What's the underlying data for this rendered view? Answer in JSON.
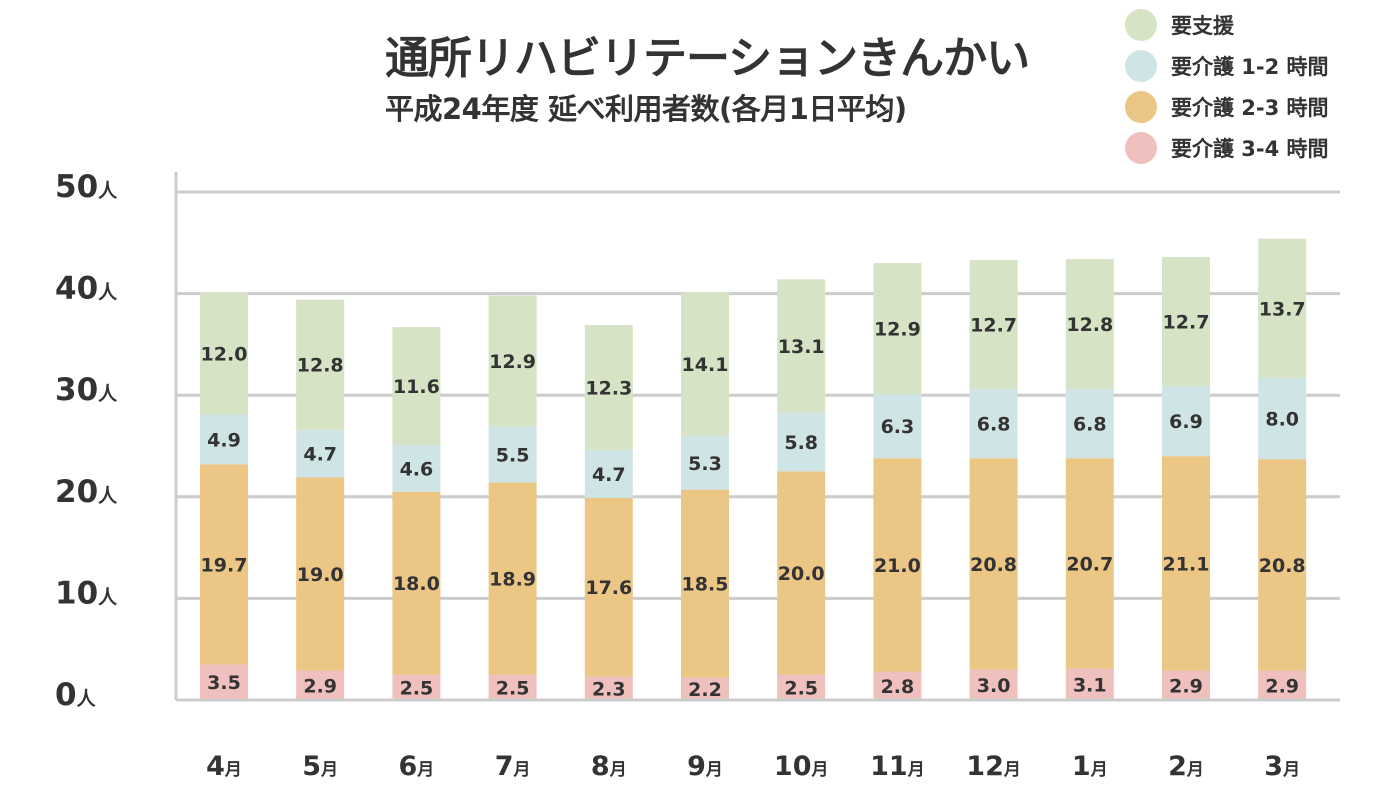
{
  "title": "通所リハビリテーションきんかい",
  "subtitle": "平成24年度 延べ利用者数(各月1日平均)",
  "colors": {
    "shien": "#d6e3c4",
    "kaigo12": "#cfe4e4",
    "kaigo23": "#ebc685",
    "kaigo34": "#efc0bd",
    "grid": "#cccccc",
    "axis": "#cccccc"
  },
  "chart_data": {
    "type": "bar",
    "stacked": true,
    "title": "通所リハビリテーションきんかい",
    "subtitle": "平成24年度 延べ利用者数(各月1日平均)",
    "categories": [
      "4月",
      "5月",
      "6月",
      "7月",
      "8月",
      "9月",
      "10月",
      "11月",
      "12月",
      "1月",
      "2月",
      "3月"
    ],
    "y_ticks": [
      "0人",
      "10人",
      "20人",
      "30人",
      "40人",
      "50人"
    ],
    "ylim": [
      0,
      50
    ],
    "grid": true,
    "legend_position": "top-right",
    "series": [
      {
        "name": "要介護 3-4 時間",
        "color_key": "kaigo34",
        "values": [
          3.5,
          2.9,
          2.5,
          2.5,
          2.3,
          2.2,
          2.5,
          2.8,
          3.0,
          3.1,
          2.9,
          2.9
        ]
      },
      {
        "name": "要介護 2-3 時間",
        "color_key": "kaigo23",
        "values": [
          19.7,
          19.0,
          18.0,
          18.9,
          17.6,
          18.5,
          20.0,
          21.0,
          20.8,
          20.7,
          21.1,
          20.8
        ]
      },
      {
        "name": "要介護 1-2 時間",
        "color_key": "kaigo12",
        "values": [
          4.9,
          4.7,
          4.6,
          5.5,
          4.7,
          5.3,
          5.8,
          6.3,
          6.8,
          6.8,
          6.9,
          8.0
        ]
      },
      {
        "name": "要支援",
        "color_key": "shien",
        "values": [
          12.0,
          12.8,
          11.6,
          12.9,
          12.3,
          14.1,
          13.1,
          12.9,
          12.7,
          12.8,
          12.7,
          13.7
        ]
      }
    ],
    "legend_order": [
      "要支援",
      "要介護 1-2 時間",
      "要介護 2-3 時間",
      "要介護 3-4 時間"
    ]
  }
}
